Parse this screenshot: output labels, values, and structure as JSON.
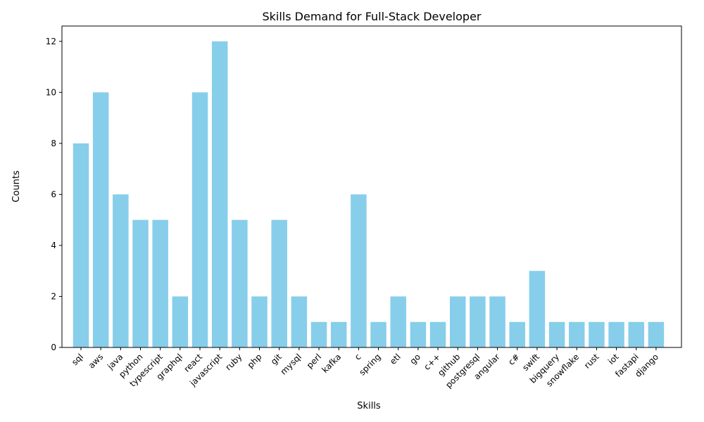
{
  "chart_data": {
    "type": "bar",
    "title": "Skills Demand for Full-Stack Developer",
    "xlabel": "Skills",
    "ylabel": "Counts",
    "categories": [
      "sql",
      "aws",
      "java",
      "python",
      "typescript",
      "graphql",
      "react",
      "javascript",
      "ruby",
      "php",
      "git",
      "mysql",
      "perl",
      "kafka",
      "c",
      "spring",
      "etl",
      "go",
      "c++",
      "github",
      "postgresql",
      "angular",
      "c#",
      "swift",
      "bigquery",
      "snowflake",
      "rust",
      "iot",
      "fastapi",
      "django"
    ],
    "values": [
      8,
      10,
      6,
      5,
      5,
      2,
      10,
      12,
      5,
      2,
      5,
      2,
      1,
      1,
      6,
      1,
      2,
      1,
      1,
      2,
      2,
      2,
      1,
      3,
      1,
      1,
      1,
      1,
      1,
      1
    ],
    "ylim": [
      0,
      12.6
    ],
    "yticks": [
      0,
      2,
      4,
      6,
      8,
      10,
      12
    ],
    "bar_color": "#87ceeb",
    "grid": false,
    "legend": "none"
  }
}
